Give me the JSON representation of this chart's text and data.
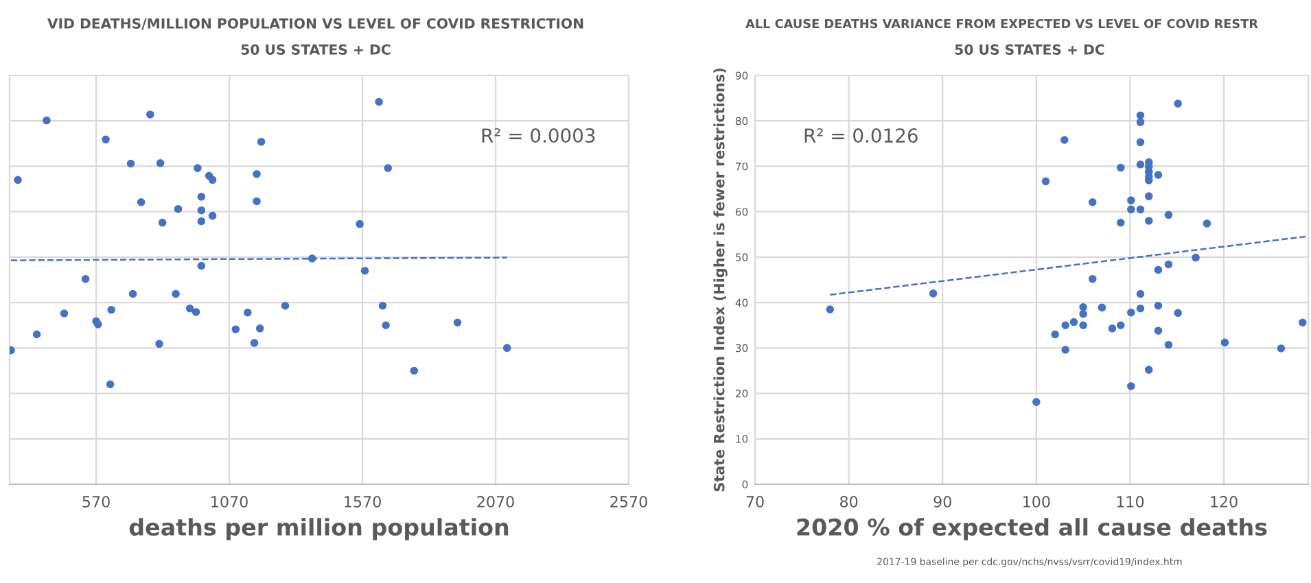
{
  "chart_data": [
    {
      "type": "scatter",
      "title": "VID DEATHS/MILLION POPULATION VS LEVEL OF COVID RESTRICTION",
      "subtitle": "50 US STATES + DC",
      "xlabel": "deaths per million population",
      "annotations": [
        "R² = 0.0003"
      ],
      "xlim": [
        245,
        2570
      ],
      "xticks": [
        570,
        1070,
        1570,
        2070,
        2570
      ],
      "ylim": [
        0,
        90
      ],
      "yticks": [
        0,
        10,
        20,
        30,
        40,
        50,
        60,
        70,
        80,
        90
      ],
      "tick_labels": "x",
      "grid": true,
      "series": [
        {
          "marker": "circle",
          "color": "#4472c4",
          "x": [
            384,
            773,
            1632,
            606,
            1190,
            700,
            811,
            951,
            994,
            1007,
            1173,
            1666,
            276,
            739,
            965,
            878,
            965,
            1173,
            1007,
            819,
            965,
            1560,
            1381,
            965,
            1579,
            530,
            708,
            869,
            450,
            627,
            570,
            577,
            347,
            250,
            807,
            922,
            945,
            1094,
            1139,
            1185,
            1164,
            1280,
            1646,
            1658,
            1927,
            1764,
            2113,
            623
          ],
          "values": [
            80.1,
            81.4,
            84.2,
            75.9,
            75.4,
            70.6,
            70.7,
            69.6,
            67.9,
            67.0,
            68.3,
            69.6,
            67.0,
            62.1,
            63.3,
            60.6,
            60.3,
            62.3,
            59.1,
            57.6,
            57.9,
            57.3,
            49.7,
            48.1,
            47.0,
            45.2,
            41.9,
            41.9,
            37.6,
            38.4,
            35.9,
            35.2,
            33.0,
            29.5,
            30.9,
            38.7,
            37.9,
            34.1,
            37.8,
            34.3,
            31.1,
            39.3,
            39.3,
            35.0,
            35.6,
            25.0,
            30.0,
            22.0
          ]
        },
        {
          "type": "line",
          "marker": "none",
          "color": "#4472c4",
          "line_style": "dashed",
          "x": [
            250,
            2113
          ],
          "values": [
            49.3,
            49.9
          ]
        }
      ]
    },
    {
      "type": "scatter",
      "title": "ALL CAUSE DEATHS VARIANCE FROM EXPECTED VS LEVEL OF COVID RESTR",
      "subtitle": "50 US STATES + DC",
      "xlabel": "2020 % of expected all cause deaths",
      "ylabel": "State Restriction Index (Higher is fewer restrictions)",
      "annotations": [
        "R² = 0.0126",
        "2017-19 baseline per cdc.gov/nchs/nvss/vsrr/covid19/index.htm"
      ],
      "xlim": [
        70,
        129
      ],
      "xticks": [
        70,
        80,
        90,
        100,
        110,
        120
      ],
      "ylim": [
        0,
        90
      ],
      "yticks": [
        0,
        10,
        20,
        30,
        40,
        50,
        60,
        70,
        80,
        90
      ],
      "grid": true,
      "series": [
        {
          "marker": "circle",
          "color": "#4472c4",
          "x": [
            115.1,
            111.1,
            111.1,
            103.0,
            111.1,
            109.0,
            111.1,
            112.0,
            112.0,
            112.0,
            112.0,
            112.0,
            113.0,
            101.0,
            106.0,
            110.1,
            110.1,
            111.1,
            112.0,
            114.1,
            109.0,
            112.0,
            118.2,
            117.0,
            114.1,
            113.0,
            106.0,
            111.1,
            89.0,
            78.0,
            102.0,
            103.1,
            103.1,
            104.0,
            105.0,
            105.0,
            105.0,
            107.0,
            108.1,
            109.0,
            110.1,
            111.1,
            110.1,
            112.0,
            113.0,
            113.0,
            114.1,
            115.1,
            120.1,
            126.1,
            128.4,
            100.0
          ],
          "values": [
            83.8,
            81.2,
            79.7,
            75.8,
            75.3,
            69.7,
            70.4,
            70.9,
            69.9,
            68.8,
            67.7,
            66.9,
            68.1,
            66.7,
            62.1,
            62.5,
            60.5,
            60.5,
            63.4,
            59.3,
            57.6,
            58.0,
            57.4,
            49.9,
            48.4,
            47.2,
            45.2,
            41.9,
            42.0,
            38.5,
            33.0,
            35.0,
            29.6,
            35.7,
            39.0,
            37.5,
            35.0,
            38.9,
            34.3,
            35.0,
            37.8,
            38.7,
            21.6,
            25.2,
            39.3,
            33.8,
            30.7,
            37.7,
            31.2,
            29.9,
            35.6,
            18.1
          ]
        },
        {
          "type": "line",
          "marker": "none",
          "color": "#4472c4",
          "line_style": "dashed",
          "x": [
            78,
            129
          ],
          "values": [
            41.7,
            54.6
          ]
        }
      ]
    }
  ]
}
